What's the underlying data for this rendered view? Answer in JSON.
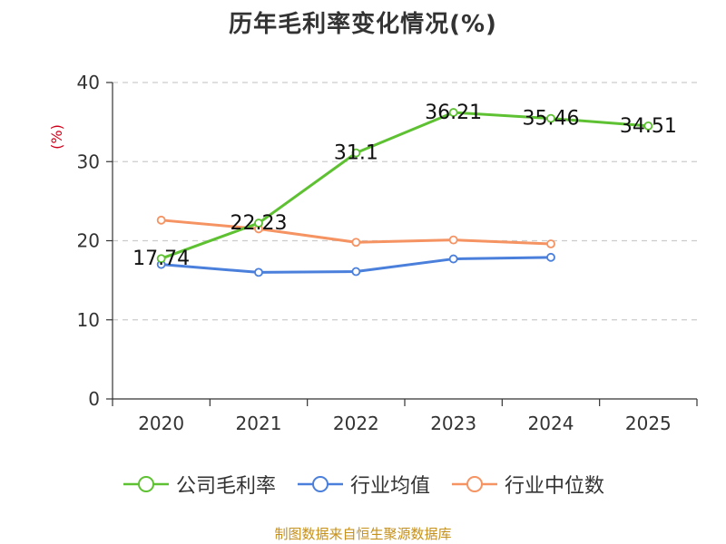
{
  "chart_data": {
    "type": "line",
    "title": "历年毛利率变化情况(%)",
    "ylabel": "(%)",
    "xlabel": "",
    "categories": [
      "2020",
      "2021",
      "2022",
      "2023",
      "2024",
      "2025"
    ],
    "ylim": [
      0,
      40
    ],
    "yticks": [
      0,
      10,
      20,
      30,
      40
    ],
    "grid": "horizontal-dashed",
    "legend_position": "bottom",
    "series": [
      {
        "name": "公司毛利率",
        "color": "#5ec132",
        "values": [
          17.74,
          22.23,
          31.1,
          36.21,
          35.46,
          34.51
        ],
        "labels": [
          "17.74",
          "22.23",
          "31.1",
          "36.21",
          "35.46",
          "34.51"
        ]
      },
      {
        "name": "行业均值",
        "color": "#4a7fdc",
        "values": [
          17.0,
          16.0,
          16.1,
          17.7,
          17.9,
          null
        ]
      },
      {
        "name": "行业中位数",
        "color": "#f59362",
        "values": [
          22.6,
          21.5,
          19.8,
          20.1,
          19.6,
          null
        ]
      }
    ]
  },
  "source": "制图数据来自恒生聚源数据库"
}
